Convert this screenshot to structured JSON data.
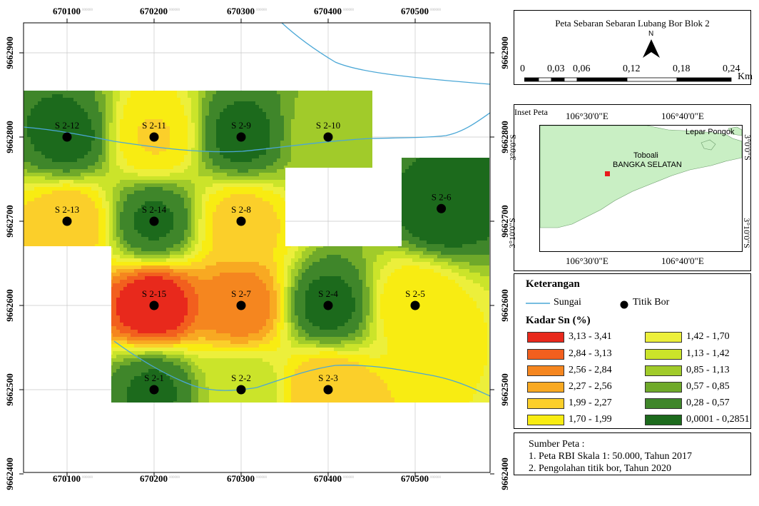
{
  "colors": {
    "class_colors": [
      "#e8291c",
      "#f25f1e",
      "#f5861f",
      "#f8a922",
      "#fbcf2a",
      "#f8ec12",
      "#ecef3b",
      "#cbe42a",
      "#a1cb2a",
      "#6fa92a",
      "#3f862a",
      "#1c6a1c"
    ],
    "river": "#4aa7d6",
    "bor_point": "#000000",
    "land": "#c9efc4",
    "sea": "#ffffff",
    "marker": "#e81b1b"
  },
  "map": {
    "x_ticks": [
      "670100",
      "670200",
      "670300",
      "670400",
      "670500"
    ],
    "y_ticks": [
      "9662900",
      "9662800",
      "9662700",
      "9662600",
      "9662500",
      "9662400"
    ],
    "tick_suffix": "000000",
    "points": [
      {
        "label": "S 2-12",
        "x": 670100,
        "y": 9662800,
        "v": 0.2
      },
      {
        "label": "S 2-11",
        "x": 670200,
        "y": 9662800,
        "v": 2.0
      },
      {
        "label": "S 2-9",
        "x": 670300,
        "y": 9662800,
        "v": 0.2
      },
      {
        "label": "S 2-10",
        "x": 670400,
        "y": 9662800,
        "v": 1.0
      },
      {
        "label": "S 2-13",
        "x": 670100,
        "y": 9662700,
        "v": 2.2
      },
      {
        "label": "S 2-14",
        "x": 670200,
        "y": 9662700,
        "v": 0.25
      },
      {
        "label": "S 2-8",
        "x": 670300,
        "y": 9662700,
        "v": 2.1
      },
      {
        "label": "S 2-6",
        "x": 670530,
        "y": 9662715,
        "v": 0.1
      },
      {
        "label": "S 2-15",
        "x": 670200,
        "y": 9662600,
        "v": 3.35
      },
      {
        "label": "S 2-7",
        "x": 670300,
        "y": 9662600,
        "v": 2.75
      },
      {
        "label": "S 2-4",
        "x": 670400,
        "y": 9662600,
        "v": 0.2
      },
      {
        "label": "S 2-5",
        "x": 670500,
        "y": 9662600,
        "v": 1.95
      },
      {
        "label": "S 2-1",
        "x": 670200,
        "y": 9662500,
        "v": 0.25
      },
      {
        "label": "S 2-2",
        "x": 670300,
        "y": 9662500,
        "v": 1.2
      },
      {
        "label": "S 2-3",
        "x": 670400,
        "y": 9662500,
        "v": 2.25
      }
    ]
  },
  "title_panel": {
    "title": "Peta Sebaran Sebaran Lubang Bor Blok 2",
    "north": "N",
    "scale_labels": [
      "0",
      "0,03",
      "0,06",
      "0,12",
      "0,18",
      "0,24"
    ],
    "scale_unit": "Km"
  },
  "inset": {
    "title": "Inset Peta",
    "top_lon": [
      "106°30'0\"E",
      "106°40'0\"E"
    ],
    "bottom_lon": [
      "106°30'0\"E",
      "106°40'0\"E"
    ],
    "left_lat": [
      "3°0'0\"S",
      "3°10'0\"S"
    ],
    "right_lat": [
      "3°0'0\"S",
      "3°10'0\"S"
    ],
    "place_lepar": "Lepar Pongok",
    "place_toboali": "Toboali",
    "place_bangka": "BANGKA SELATAN"
  },
  "legend": {
    "heading": "Keterangan",
    "river_label": "Sungai",
    "bor_label": "Titik Bor",
    "kadar_heading": "Kadar Sn (%)",
    "classes_left": [
      "3,13 - 3,41",
      "2,84 - 3,13",
      "2,56 - 2,84",
      "2,27 - 2,56",
      "1,99 - 2,27",
      "1,70 - 1,99"
    ],
    "classes_right": [
      "1,42 - 1,70",
      "1,13 - 1,42",
      "0,85 - 1,13",
      "0,57 - 0,85",
      "0,28 - 0,57",
      "0,0001 - 0,2851"
    ]
  },
  "source": {
    "heading": "Sumber Peta :",
    "line1": "1. Peta RBI Skala 1: 50.000, Tahun 2017",
    "line2": "2. Pengolahan titik bor, Tahun 2020"
  }
}
